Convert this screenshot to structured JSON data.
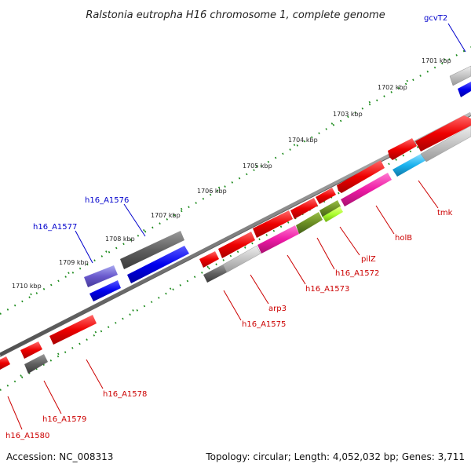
{
  "title": "Ralstonia eutropha H16 chromosome 1, complete genome",
  "footer": {
    "accession": "Accession: NC_008313",
    "topology": "Topology: circular; Length: 4,052,032 bp; Genes: 3,711"
  },
  "colors": {
    "ring": "#808080",
    "tick": "#1b8a1b",
    "label_top": "#0000cc",
    "label_bottom": "#cc0000"
  },
  "scale_labels": [
    "1701 kbp",
    "1702 kbp",
    "1703 kbp",
    "1704 kbp",
    "1705 kbp",
    "1706 kbp",
    "1707 kbp",
    "1708 kbp",
    "1709 kbp",
    "1710 kbp"
  ],
  "gene_labels_top": [
    "gcvT2",
    "h16_A1576",
    "h16_A1577"
  ],
  "gene_labels_bottom": [
    "tmk",
    "holB",
    "pilZ",
    "h16_A1572",
    "h16_A1573",
    "arp3",
    "h16_A1575",
    "h16_A1578",
    "h16_A1579",
    "h16_A1580"
  ]
}
